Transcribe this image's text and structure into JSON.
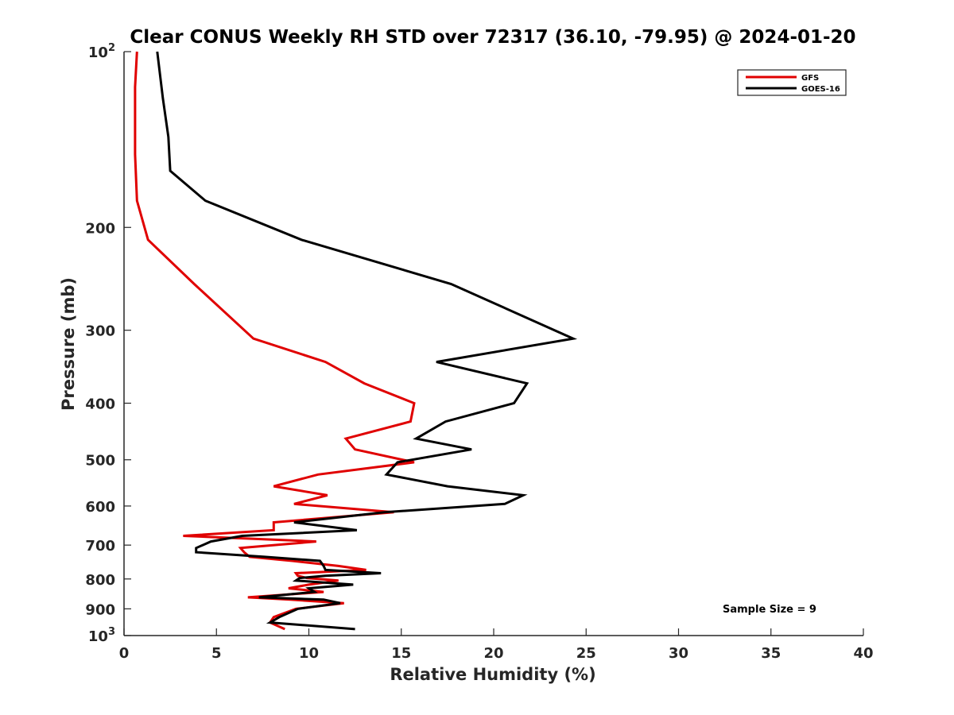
{
  "chart_data": {
    "type": "line",
    "title": "Clear CONUS Weekly RH STD over 72317 (36.10, -79.95) @ 2024-01-20",
    "xlabel": "Relative Humidity (%)",
    "ylabel": "Pressure (mb)",
    "xlim": [
      0,
      40
    ],
    "ylim": [
      100,
      1000
    ],
    "y_scale": "log",
    "y_reversed": true,
    "xticks": [
      0,
      5,
      10,
      15,
      20,
      25,
      30,
      35,
      40
    ],
    "xtick_labels": [
      "0",
      "5",
      "10",
      "15",
      "20",
      "25",
      "30",
      "35",
      "40"
    ],
    "yticks": [
      100,
      200,
      300,
      400,
      500,
      600,
      700,
      800,
      900,
      1000
    ],
    "ytick_labels": [
      {
        "base": "10",
        "exp": "2"
      },
      {
        "base": "200",
        "exp": ""
      },
      {
        "base": "300",
        "exp": ""
      },
      {
        "base": "400",
        "exp": ""
      },
      {
        "base": "500",
        "exp": ""
      },
      {
        "base": "600",
        "exp": ""
      },
      {
        "base": "700",
        "exp": ""
      },
      {
        "base": "800",
        "exp": ""
      },
      {
        "base": "900",
        "exp": ""
      },
      {
        "base": "10",
        "exp": "3"
      }
    ],
    "grid": false,
    "legend_position": "top-right",
    "annotation": "Sample Size = 9",
    "series": [
      {
        "name": "GFS",
        "color": "#e00000",
        "points": [
          [
            0.7,
            100
          ],
          [
            0.6,
            115
          ],
          [
            0.6,
            130
          ],
          [
            0.6,
            150
          ],
          [
            0.7,
            180
          ],
          [
            1.3,
            210
          ],
          [
            3.8,
            250
          ],
          [
            7.0,
            310
          ],
          [
            10.9,
            340
          ],
          [
            13.0,
            370
          ],
          [
            15.7,
            400
          ],
          [
            15.5,
            430
          ],
          [
            12.0,
            460
          ],
          [
            12.5,
            480
          ],
          [
            15.7,
            505
          ],
          [
            10.5,
            530
          ],
          [
            8.1,
            555
          ],
          [
            11.0,
            575
          ],
          [
            9.2,
            595
          ],
          [
            14.6,
            615
          ],
          [
            8.1,
            640
          ],
          [
            8.1,
            660
          ],
          [
            3.2,
            675
          ],
          [
            10.4,
            690
          ],
          [
            6.3,
            708
          ],
          [
            6.5,
            720
          ],
          [
            6.8,
            733
          ],
          [
            9.1,
            745
          ],
          [
            11.6,
            760
          ],
          [
            13.1,
            772
          ],
          [
            9.3,
            782
          ],
          [
            9.4,
            790
          ],
          [
            9.9,
            797
          ],
          [
            11.6,
            805
          ],
          [
            10.0,
            818
          ],
          [
            8.9,
            830
          ],
          [
            10.8,
            842
          ],
          [
            6.7,
            860
          ],
          [
            9.0,
            868
          ],
          [
            11.9,
            880
          ],
          [
            9.3,
            900
          ],
          [
            8.1,
            930
          ],
          [
            7.9,
            950
          ],
          [
            8.7,
            975
          ]
        ]
      },
      {
        "name": "GOES-16",
        "color": "#000000",
        "points": [
          [
            1.8,
            100
          ],
          [
            2.1,
            120
          ],
          [
            2.4,
            140
          ],
          [
            2.5,
            160
          ],
          [
            4.4,
            180
          ],
          [
            9.6,
            210
          ],
          [
            17.7,
            250
          ],
          [
            24.3,
            310
          ],
          [
            16.9,
            340
          ],
          [
            21.8,
            370
          ],
          [
            21.1,
            400
          ],
          [
            17.4,
            430
          ],
          [
            15.8,
            460
          ],
          [
            18.8,
            480
          ],
          [
            14.8,
            505
          ],
          [
            14.2,
            530
          ],
          [
            17.5,
            555
          ],
          [
            21.6,
            575
          ],
          [
            20.6,
            595
          ],
          [
            14.1,
            615
          ],
          [
            9.2,
            640
          ],
          [
            12.6,
            660
          ],
          [
            6.4,
            675
          ],
          [
            4.7,
            690
          ],
          [
            3.9,
            708
          ],
          [
            3.9,
            720
          ],
          [
            7.6,
            733
          ],
          [
            10.6,
            745
          ],
          [
            10.8,
            760
          ],
          [
            10.9,
            772
          ],
          [
            13.9,
            782
          ],
          [
            10.9,
            790
          ],
          [
            9.5,
            797
          ],
          [
            9.3,
            805
          ],
          [
            12.4,
            818
          ],
          [
            10.0,
            830
          ],
          [
            10.3,
            842
          ],
          [
            7.3,
            860
          ],
          [
            10.8,
            868
          ],
          [
            11.7,
            880
          ],
          [
            9.4,
            900
          ],
          [
            8.4,
            930
          ],
          [
            7.9,
            950
          ],
          [
            12.5,
            975
          ]
        ]
      }
    ]
  }
}
